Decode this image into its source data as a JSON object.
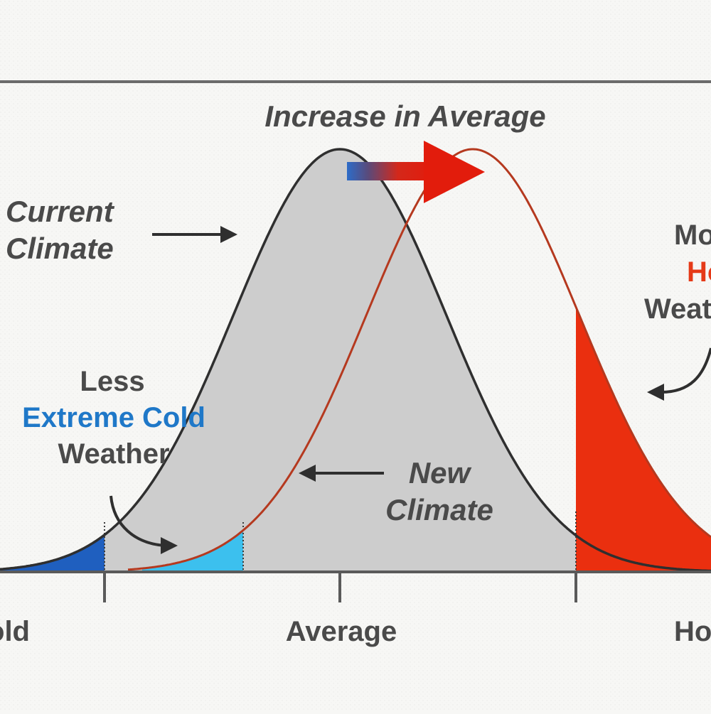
{
  "title": "Increase in Average",
  "labels": {
    "current_climate_line1": "Current",
    "current_climate_line2": "Climate",
    "new_climate_line1": "New",
    "new_climate_line2": "Climate",
    "less_line1": "Less",
    "less_line2": "Extreme Cold",
    "less_line3": "Weather",
    "more_line1": "More",
    "more_line2": "Hot",
    "more_line3": "Weather"
  },
  "axis": {
    "left": "Cold",
    "center": "Average",
    "right": "Hot"
  },
  "colors": {
    "current_fill": "#cdcdcd",
    "current_curve": "#2f2f2f",
    "new_curve": "#b5391f",
    "cold_extreme": "#1f5fbf",
    "cold_mild": "#3cc0ee",
    "hot_extreme": "#ea2f0f",
    "arrow_start": "#2d6cc8",
    "arrow_end": "#e21c0c",
    "text_blue": "#1f78c8",
    "text_red": "#e53a18"
  }
}
